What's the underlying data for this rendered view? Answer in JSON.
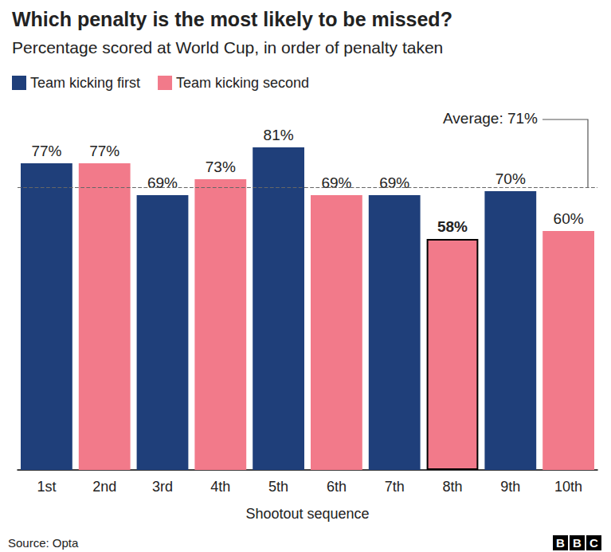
{
  "chart_data": {
    "type": "bar",
    "title": "Which penalty is the most likely to be missed?",
    "subtitle": "Percentage scored at World Cup, in order of penalty taken",
    "x_label": "Shootout sequence",
    "source": "Source: Opta",
    "logo": "BBC",
    "categories": [
      "1st",
      "2nd",
      "3rd",
      "4th",
      "5th",
      "6th",
      "7th",
      "8th",
      "9th",
      "10th"
    ],
    "series": [
      {
        "name": "Team kicking first",
        "color": "#1f3f7a",
        "values": [
          77,
          null,
          69,
          null,
          81,
          null,
          69,
          null,
          70,
          null
        ],
        "value_labels": [
          "77%",
          null,
          "69%",
          null,
          "81%",
          null,
          "69%",
          null,
          "70%",
          null
        ]
      },
      {
        "name": "Team kicking second",
        "color": "#f27a8a",
        "values": [
          null,
          77,
          null,
          73,
          null,
          69,
          null,
          58,
          null,
          60
        ],
        "value_labels": [
          null,
          "77%",
          null,
          "73%",
          null,
          "69%",
          null,
          "58%",
          null,
          "60%"
        ]
      }
    ],
    "average": {
      "value": 71,
      "label": "Average: 71%"
    },
    "ylim": [
      0,
      100
    ],
    "data_labels": true,
    "tick_labels": "x",
    "grid": false,
    "legend": "top-left"
  }
}
